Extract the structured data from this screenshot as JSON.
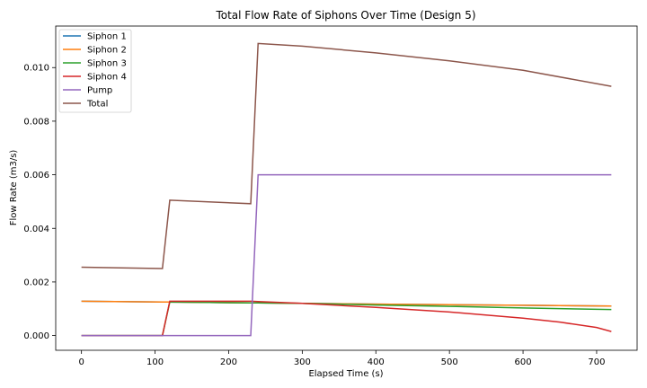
{
  "chart_data": {
    "type": "line",
    "title": "Total Flow Rate of Siphons Over Time (Design 5)",
    "xlabel": "Elapsed Time (s)",
    "ylabel": "Flow Rate (m3/s)",
    "xlim": [
      -35,
      755
    ],
    "ylim": [
      -0.00055,
      0.01155
    ],
    "xticks": [
      0,
      100,
      200,
      300,
      400,
      500,
      600,
      700
    ],
    "xtick_labels": [
      "0",
      "100",
      "200",
      "300",
      "400",
      "500",
      "600",
      "700"
    ],
    "yticks": [
      0,
      0.002,
      0.004,
      0.006,
      0.008,
      0.01
    ],
    "ytick_labels": [
      "0.000",
      "0.002",
      "0.004",
      "0.006",
      "0.008",
      "0.010"
    ],
    "grid": false,
    "legend": "top-left",
    "series": [
      {
        "name": "Siphon 1",
        "color": "#1f77b4",
        "x": [
          0,
          110,
          120,
          230,
          240,
          300,
          400,
          500,
          600,
          720
        ],
        "y": [
          0.00128,
          0.00125,
          0.00125,
          0.00122,
          0.00122,
          0.0012,
          0.00117,
          0.00115,
          0.00113,
          0.0011
        ]
      },
      {
        "name": "Siphon 2",
        "color": "#ff7f0e",
        "x": [
          0,
          110,
          120,
          230,
          240,
          300,
          400,
          500,
          600,
          720
        ],
        "y": [
          0.00128,
          0.00125,
          0.00125,
          0.00122,
          0.00122,
          0.0012,
          0.00117,
          0.00115,
          0.00113,
          0.0011
        ]
      },
      {
        "name": "Siphon 3",
        "color": "#2ca02c",
        "x": [
          0,
          110,
          120,
          230,
          240,
          300,
          400,
          500,
          600,
          720
        ],
        "y": [
          0,
          0,
          0.00125,
          0.00122,
          0.00122,
          0.0012,
          0.00114,
          0.00109,
          0.00103,
          0.00097
        ]
      },
      {
        "name": "Siphon 4",
        "color": "#d62728",
        "x": [
          0,
          110,
          120,
          230,
          240,
          300,
          400,
          500,
          600,
          650,
          700,
          720
        ],
        "y": [
          0,
          0,
          0.00128,
          0.00128,
          0.00127,
          0.0012,
          0.00105,
          0.00088,
          0.00065,
          0.0005,
          0.0003,
          0.00015
        ]
      },
      {
        "name": "Pump",
        "color": "#9467bd",
        "x": [
          0,
          230,
          240,
          720
        ],
        "y": [
          0,
          0,
          0.006,
          0.006
        ]
      },
      {
        "name": "Total",
        "color": "#8c564b",
        "x": [
          0,
          110,
          120,
          230,
          240,
          300,
          400,
          500,
          600,
          720
        ],
        "y": [
          0.00255,
          0.0025,
          0.00505,
          0.00492,
          0.0109,
          0.0108,
          0.01055,
          0.01025,
          0.0099,
          0.0093
        ]
      }
    ]
  }
}
